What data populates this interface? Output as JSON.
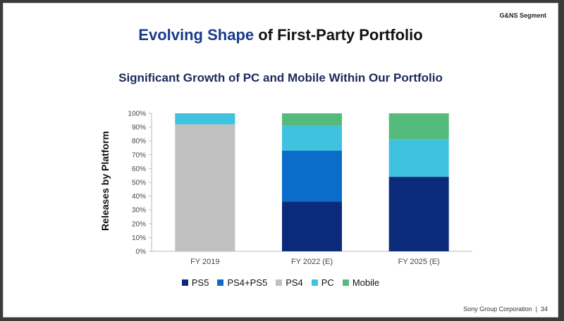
{
  "header": {
    "segment": "G&NS Segment",
    "title_accent": "Evolving Shape",
    "title_rest": " of First-Party Portfolio",
    "subtitle": "Significant Growth of PC and Mobile Within Our Portfolio"
  },
  "footer": {
    "company": "Sony Group Corporation",
    "page": "34"
  },
  "chart_data": {
    "type": "bar",
    "stacked": true,
    "ylabel": "Releases by Platform",
    "xlabel": "",
    "ylim": [
      0,
      100
    ],
    "y_ticks": [
      "0%",
      "10%",
      "20%",
      "30%",
      "40%",
      "50%",
      "60%",
      "70%",
      "80%",
      "90%",
      "100%"
    ],
    "categories": [
      "FY 2019",
      "FY 2022 (E)",
      "FY 2025 (E)"
    ],
    "series": [
      {
        "name": "PS5",
        "color": "#0b2a7a",
        "values": [
          0,
          36,
          54
        ]
      },
      {
        "name": "PS4+PS5",
        "color": "#0a6dc9",
        "values": [
          0,
          37,
          0
        ]
      },
      {
        "name": "PS4",
        "color": "#c0c0c0",
        "values": [
          92,
          0,
          0
        ]
      },
      {
        "name": "PC",
        "color": "#3fc2df",
        "values": [
          8,
          18,
          27
        ]
      },
      {
        "name": "Mobile",
        "color": "#55bb7c",
        "values": [
          0,
          9,
          19
        ]
      }
    ],
    "legend_position": "bottom",
    "grid": false
  }
}
